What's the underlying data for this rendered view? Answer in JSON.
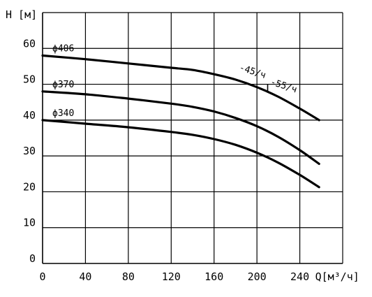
{
  "chart_data": {
    "type": "line",
    "title": "",
    "ylabel": "H [м]",
    "xlabel": "Q[м³/ч]",
    "xlim": [
      0,
      280
    ],
    "ylim": [
      0,
      70
    ],
    "x_ticks": [
      0,
      40,
      80,
      120,
      160,
      200,
      240
    ],
    "y_ticks": [
      0,
      10,
      20,
      30,
      40,
      50,
      60
    ],
    "grid": true,
    "series": [
      {
        "name": "ϕ406",
        "x": [
          0,
          40,
          80,
          120,
          140,
          160,
          180,
          200,
          220,
          240,
          258
        ],
        "y": [
          58,
          57,
          55.8,
          54.6,
          54,
          52.8,
          51.3,
          49.2,
          46.5,
          43.2,
          40
        ]
      },
      {
        "name": "ϕ370",
        "x": [
          0,
          40,
          80,
          120,
          140,
          160,
          180,
          200,
          220,
          240,
          258
        ],
        "y": [
          48,
          47.2,
          46,
          44.6,
          43.7,
          42.4,
          40.6,
          38.3,
          35.3,
          31.6,
          27.8
        ]
      },
      {
        "name": "ϕ340",
        "x": [
          0,
          40,
          80,
          120,
          140,
          160,
          180,
          200,
          220,
          240,
          258
        ],
        "y": [
          40,
          39,
          38,
          36.7,
          35.9,
          34.7,
          33.1,
          30.9,
          28.1,
          24.7,
          21.3
        ]
      }
    ],
    "annotations": [
      {
        "text": "-45/ч",
        "x": 183,
        "y": 54
      },
      {
        "text": "-55/ч",
        "x": 212,
        "y": 50
      }
    ]
  }
}
